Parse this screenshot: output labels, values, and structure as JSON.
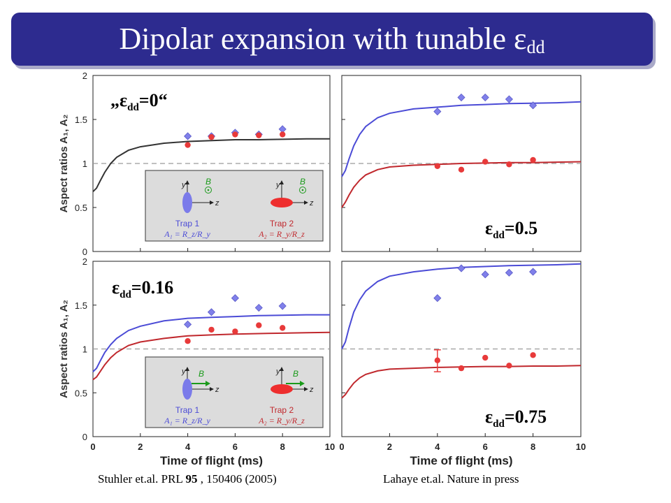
{
  "slide": {
    "title_main": "Dipolar expansion with tunable ε",
    "title_sub": "dd",
    "citation_left": {
      "authors": "Stuhler et.al. PRL ",
      "volume": "95",
      "rest": " , 150406 (2005)"
    },
    "citation_right": "Lahaye et.al. Nature in press"
  },
  "colors": {
    "title_bar": "#2d2b8f",
    "blue_series": "#4b4bd6",
    "red_series": "#c0282d",
    "theory_black": "#333333",
    "reference_line": "#9a9a9a",
    "inset_bg": "#dcdcdc"
  },
  "inset_labels": {
    "y": "y",
    "z": "z",
    "b": "B",
    "trap1": "Trap 1",
    "trap2": "Trap 2",
    "a1": "A₁ = R_z/R_y",
    "a2": "A₂ = R_y/R_z"
  },
  "chart_data": [
    {
      "type": "scatter",
      "panel": "top-left",
      "eps_label": {
        "prefix": "„ε",
        "sub": "dd",
        "suffix": "=0“"
      },
      "ylabel": "Aspect ratios A₁, A₂",
      "xlim": [
        0,
        10
      ],
      "ylim": [
        0,
        2
      ],
      "yticks": [
        0,
        0.5,
        1,
        1.5,
        2
      ],
      "reference_y": 1,
      "series": [
        {
          "x": [
            4,
            5,
            6,
            7,
            8
          ],
          "values": [
            1.31,
            1.31,
            1.35,
            1.33,
            1.39
          ],
          "marker": "diamond",
          "color": "#8080ea"
        },
        {
          "x": [
            4,
            5,
            6,
            7,
            8
          ],
          "values": [
            1.21,
            1.3,
            1.33,
            1.32,
            1.33
          ],
          "marker": "circle",
          "color": "#e83a3a"
        }
      ],
      "theory": [
        {
          "color": "#333333",
          "x": [
            0,
            0.15,
            0.3,
            0.5,
            0.75,
            1,
            1.5,
            2,
            3,
            4,
            5,
            6,
            7,
            8,
            9,
            10
          ],
          "y": [
            0.68,
            0.72,
            0.8,
            0.9,
            1.0,
            1.07,
            1.15,
            1.19,
            1.23,
            1.25,
            1.26,
            1.27,
            1.27,
            1.275,
            1.28,
            1.28
          ]
        }
      ],
      "inset": "field-y"
    },
    {
      "type": "scatter",
      "panel": "top-right",
      "eps_label": {
        "prefix": "ε",
        "sub": "dd",
        "suffix": "=0.5"
      },
      "xlim": [
        0,
        10
      ],
      "ylim": [
        0,
        2
      ],
      "reference_y": 1,
      "series": [
        {
          "x": [
            4,
            5,
            6,
            7,
            8
          ],
          "values": [
            1.59,
            1.75,
            1.75,
            1.73,
            1.66
          ],
          "marker": "diamond",
          "color": "#8080ea"
        },
        {
          "x": [
            4,
            5,
            6,
            7,
            8
          ],
          "values": [
            0.97,
            0.93,
            1.02,
            0.99,
            1.04
          ],
          "marker": "circle",
          "color": "#e83a3a"
        }
      ],
      "theory": [
        {
          "color": "#4b4bd6",
          "x": [
            0,
            0.15,
            0.3,
            0.5,
            0.75,
            1,
            1.5,
            2,
            3,
            4,
            5,
            6,
            7,
            8,
            9,
            10
          ],
          "y": [
            0.85,
            0.92,
            1.05,
            1.2,
            1.33,
            1.42,
            1.52,
            1.57,
            1.62,
            1.64,
            1.66,
            1.67,
            1.68,
            1.685,
            1.69,
            1.7
          ]
        },
        {
          "color": "#c0282d",
          "x": [
            0,
            0.15,
            0.3,
            0.5,
            0.75,
            1,
            1.5,
            2,
            3,
            4,
            5,
            6,
            7,
            8,
            9,
            10
          ],
          "y": [
            0.5,
            0.56,
            0.64,
            0.73,
            0.81,
            0.87,
            0.93,
            0.96,
            0.98,
            0.99,
            1.0,
            1.005,
            1.01,
            1.01,
            1.015,
            1.02
          ]
        }
      ]
    },
    {
      "type": "scatter",
      "panel": "bottom-left",
      "eps_label": {
        "prefix": "ε",
        "sub": "dd",
        "suffix": "=0.16"
      },
      "ylabel": "Aspect ratios A₁, A₂",
      "xlabel": "Time of flight (ms)",
      "xlim": [
        0,
        10
      ],
      "ylim": [
        0,
        2
      ],
      "xticks": [
        0,
        2,
        4,
        6,
        8,
        10
      ],
      "yticks": [
        0,
        0.5,
        1,
        1.5,
        2
      ],
      "reference_y": 1,
      "series": [
        {
          "x": [
            4,
            5,
            6,
            7,
            8
          ],
          "values": [
            1.28,
            1.42,
            1.58,
            1.47,
            1.49
          ],
          "marker": "diamond",
          "color": "#8080ea"
        },
        {
          "x": [
            4,
            5,
            6,
            7,
            8
          ],
          "values": [
            1.09,
            1.22,
            1.2,
            1.27,
            1.24
          ],
          "marker": "circle",
          "color": "#e83a3a"
        }
      ],
      "theory": [
        {
          "color": "#4b4bd6",
          "x": [
            0,
            0.15,
            0.3,
            0.5,
            0.75,
            1,
            1.5,
            2,
            3,
            4,
            5,
            6,
            7,
            8,
            9,
            10
          ],
          "y": [
            0.74,
            0.78,
            0.86,
            0.96,
            1.05,
            1.12,
            1.21,
            1.26,
            1.32,
            1.35,
            1.36,
            1.37,
            1.38,
            1.385,
            1.39,
            1.39
          ]
        },
        {
          "color": "#c0282d",
          "x": [
            0,
            0.15,
            0.3,
            0.5,
            0.75,
            1,
            1.5,
            2,
            3,
            4,
            5,
            6,
            7,
            8,
            9,
            10
          ],
          "y": [
            0.65,
            0.68,
            0.74,
            0.82,
            0.9,
            0.96,
            1.04,
            1.08,
            1.12,
            1.15,
            1.16,
            1.17,
            1.175,
            1.18,
            1.185,
            1.19
          ]
        }
      ],
      "inset": "field-z"
    },
    {
      "type": "scatter",
      "panel": "bottom-right",
      "eps_label": {
        "prefix": "ε",
        "sub": "dd",
        "suffix": "=0.75"
      },
      "xlabel": "Time of flight (ms)",
      "xlim": [
        0,
        10
      ],
      "ylim": [
        0,
        2
      ],
      "xticks": [
        0,
        2,
        4,
        6,
        8,
        10
      ],
      "reference_y": 1,
      "series": [
        {
          "x": [
            4,
            5,
            6,
            7,
            8
          ],
          "values": [
            1.58,
            1.92,
            1.85,
            1.87,
            1.88
          ],
          "marker": "diamond",
          "color": "#8080ea"
        },
        {
          "x": [
            4,
            5,
            6,
            7,
            8
          ],
          "values": [
            0.87,
            0.78,
            0.9,
            0.81,
            0.93
          ],
          "marker": "circle",
          "color": "#e83a3a",
          "errorbar": {
            "x": 4,
            "low": 0.74,
            "high": 0.99
          }
        }
      ],
      "theory": [
        {
          "color": "#4b4bd6",
          "x": [
            0,
            0.15,
            0.3,
            0.5,
            0.75,
            1,
            1.5,
            2,
            3,
            4,
            5,
            6,
            7,
            8,
            9,
            10
          ],
          "y": [
            1.0,
            1.08,
            1.24,
            1.42,
            1.56,
            1.66,
            1.77,
            1.83,
            1.88,
            1.91,
            1.93,
            1.94,
            1.95,
            1.955,
            1.96,
            1.97
          ]
        },
        {
          "color": "#c0282d",
          "x": [
            0,
            0.15,
            0.3,
            0.5,
            0.75,
            1,
            1.5,
            2,
            3,
            4,
            5,
            6,
            7,
            8,
            9,
            10
          ],
          "y": [
            0.44,
            0.48,
            0.54,
            0.61,
            0.67,
            0.71,
            0.75,
            0.77,
            0.78,
            0.79,
            0.795,
            0.8,
            0.8,
            0.805,
            0.805,
            0.81
          ]
        }
      ]
    }
  ]
}
